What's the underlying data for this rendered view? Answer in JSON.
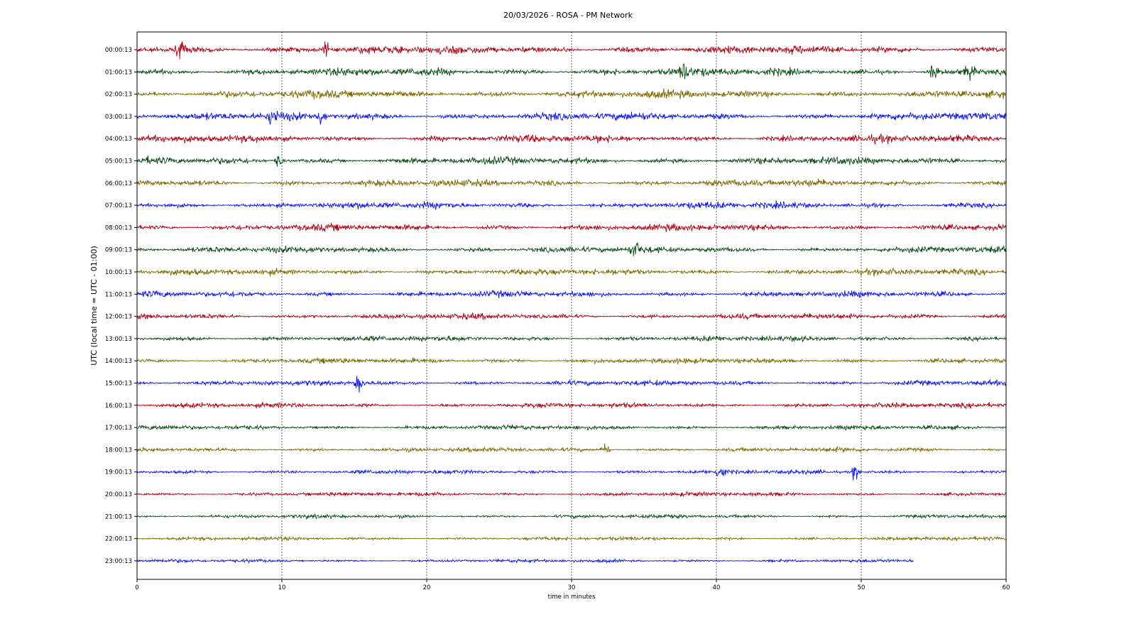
{
  "chart_data": {
    "type": "line",
    "title": "20/03/2026 - ROSA - PM Network",
    "xlabel": "time in minutes",
    "ylabel": "UTC (local time = UTC - 01:00)",
    "xlim": [
      0,
      60
    ],
    "x_ticks": [
      0,
      10,
      20,
      30,
      40,
      50,
      60
    ],
    "grid": "vertical dashed at major x ticks",
    "legend": "none",
    "row_labels": [
      "00:00:13",
      "01:00:13",
      "02:00:13",
      "03:00:13",
      "04:00:13",
      "05:00:13",
      "06:00:13",
      "07:00:13",
      "08:00:13",
      "09:00:13",
      "10:00:13",
      "11:00:13",
      "12:00:13",
      "13:00:13",
      "14:00:13",
      "15:00:13",
      "16:00:13",
      "17:00:13",
      "18:00:13",
      "19:00:13",
      "20:00:13",
      "21:00:13",
      "22:00:13",
      "23:00:13"
    ],
    "color_cycle": [
      "#b00012",
      "#0b4d15",
      "#7c6a00",
      "#0a14f5"
    ],
    "trace_end_minutes": [
      60,
      60,
      60,
      60,
      60,
      60,
      60,
      60,
      60,
      60,
      60,
      60,
      60,
      60,
      60,
      60,
      60,
      60,
      60,
      60,
      60,
      60,
      60,
      53.6
    ],
    "events": [
      {
        "row": 0,
        "minute": 3.0
      },
      {
        "row": 0,
        "minute": 13.0
      },
      {
        "row": 1,
        "minute": 37.8
      },
      {
        "row": 1,
        "minute": 55.0
      },
      {
        "row": 1,
        "minute": 57.5
      },
      {
        "row": 3,
        "minute": 9.4
      },
      {
        "row": 3,
        "minute": 12.7
      },
      {
        "row": 5,
        "minute": 9.8
      },
      {
        "row": 9,
        "minute": 34.4
      },
      {
        "row": 15,
        "minute": 15.3
      },
      {
        "row": 18,
        "minute": 32.3
      },
      {
        "row": 19,
        "minute": 40.3
      },
      {
        "row": 19,
        "minute": 49.6
      }
    ]
  }
}
